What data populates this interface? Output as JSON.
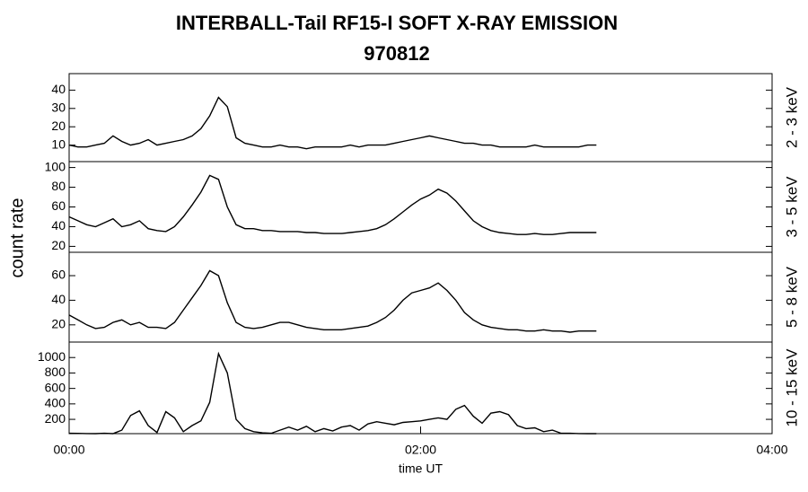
{
  "title": "INTERBALL-Tail RF15-I SOFT X-RAY EMISSION",
  "subtitle": "970812",
  "ylabel": "count rate",
  "chart_data": [
    {
      "type": "line",
      "label": "2 - 3 keV",
      "color": "#000000",
      "x": [
        0,
        3,
        6,
        9,
        12,
        15,
        18,
        21,
        24,
        27,
        30,
        33,
        36,
        39,
        42,
        45,
        48,
        51,
        54,
        57,
        60,
        63,
        66,
        69,
        72,
        75,
        78,
        81,
        84,
        87,
        90,
        93,
        96,
        99,
        102,
        105,
        108,
        111,
        114,
        117,
        120,
        123,
        126,
        129,
        132,
        135,
        138,
        141,
        144,
        147,
        150,
        153,
        156,
        159,
        162,
        165,
        168,
        171,
        174,
        177,
        180
      ],
      "values": [
        10,
        9,
        9,
        10,
        11,
        15,
        12,
        10,
        11,
        13,
        10,
        11,
        12,
        13,
        15,
        19,
        26,
        36,
        31,
        14,
        11,
        10,
        9,
        9,
        10,
        9,
        9,
        8,
        9,
        9,
        9,
        9,
        10,
        9,
        10,
        10,
        10,
        11,
        12,
        13,
        14,
        15,
        14,
        13,
        12,
        11,
        11,
        10,
        10,
        9,
        9,
        9,
        9,
        10,
        9,
        9,
        9,
        9,
        9,
        10,
        10
      ],
      "xlim": [
        0,
        240
      ],
      "ylim": [
        1,
        49
      ],
      "yticks": [
        10,
        20,
        30,
        40
      ]
    },
    {
      "type": "line",
      "label": "3 - 5 keV",
      "color": "#000000",
      "x": [
        0,
        3,
        6,
        9,
        12,
        15,
        18,
        21,
        24,
        27,
        30,
        33,
        36,
        39,
        42,
        45,
        48,
        51,
        54,
        57,
        60,
        63,
        66,
        69,
        72,
        75,
        78,
        81,
        84,
        87,
        90,
        93,
        96,
        99,
        102,
        105,
        108,
        111,
        114,
        117,
        120,
        123,
        126,
        129,
        132,
        135,
        138,
        141,
        144,
        147,
        150,
        153,
        156,
        159,
        162,
        165,
        168,
        171,
        174,
        177,
        180
      ],
      "values": [
        50,
        46,
        42,
        40,
        44,
        48,
        40,
        42,
        46,
        38,
        36,
        35,
        40,
        50,
        62,
        75,
        92,
        88,
        60,
        42,
        38,
        38,
        36,
        36,
        35,
        35,
        35,
        34,
        34,
        33,
        33,
        33,
        34,
        35,
        36,
        38,
        42,
        48,
        55,
        62,
        68,
        72,
        78,
        74,
        66,
        56,
        46,
        40,
        36,
        34,
        33,
        32,
        32,
        33,
        32,
        32,
        33,
        34,
        34,
        34,
        34
      ],
      "xlim": [
        0,
        240
      ],
      "ylim": [
        14,
        106
      ],
      "yticks": [
        20,
        40,
        60,
        80,
        100
      ]
    },
    {
      "type": "line",
      "label": "5 - 8 keV",
      "color": "#000000",
      "x": [
        0,
        3,
        6,
        9,
        12,
        15,
        18,
        21,
        24,
        27,
        30,
        33,
        36,
        39,
        42,
        45,
        48,
        51,
        54,
        57,
        60,
        63,
        66,
        69,
        72,
        75,
        78,
        81,
        84,
        87,
        90,
        93,
        96,
        99,
        102,
        105,
        108,
        111,
        114,
        117,
        120,
        123,
        126,
        129,
        132,
        135,
        138,
        141,
        144,
        147,
        150,
        153,
        156,
        159,
        162,
        165,
        168,
        171,
        174,
        177,
        180
      ],
      "values": [
        28,
        24,
        20,
        17,
        18,
        22,
        24,
        20,
        22,
        18,
        18,
        17,
        22,
        32,
        42,
        52,
        64,
        60,
        38,
        22,
        18,
        17,
        18,
        20,
        22,
        22,
        20,
        18,
        17,
        16,
        16,
        16,
        17,
        18,
        19,
        22,
        26,
        32,
        40,
        46,
        48,
        50,
        54,
        48,
        40,
        30,
        24,
        20,
        18,
        17,
        16,
        16,
        15,
        15,
        16,
        15,
        15,
        14,
        15,
        15,
        15
      ],
      "xlim": [
        0,
        240
      ],
      "ylim": [
        6,
        79
      ],
      "yticks": [
        20,
        40,
        60
      ]
    },
    {
      "type": "line",
      "label": "10 - 15 keV",
      "color": "#000000",
      "x": [
        0,
        3,
        6,
        9,
        12,
        15,
        18,
        21,
        24,
        27,
        30,
        33,
        36,
        39,
        42,
        45,
        48,
        51,
        54,
        57,
        60,
        63,
        66,
        69,
        72,
        75,
        78,
        81,
        84,
        87,
        90,
        93,
        96,
        99,
        102,
        105,
        108,
        111,
        114,
        117,
        120,
        123,
        126,
        129,
        132,
        135,
        138,
        141,
        144,
        147,
        150,
        153,
        156,
        159,
        162,
        165,
        168,
        171,
        174,
        177,
        180
      ],
      "values": [
        20,
        18,
        16,
        15,
        20,
        15,
        60,
        250,
        310,
        120,
        30,
        300,
        220,
        40,
        120,
        180,
        420,
        1050,
        800,
        200,
        80,
        40,
        25,
        20,
        60,
        100,
        60,
        110,
        40,
        80,
        50,
        100,
        120,
        60,
        140,
        170,
        150,
        130,
        160,
        170,
        180,
        200,
        220,
        200,
        330,
        380,
        240,
        150,
        280,
        300,
        260,
        120,
        80,
        90,
        40,
        60,
        20,
        20,
        16,
        15,
        15
      ],
      "xlim": [
        0,
        240
      ],
      "ylim": [
        15,
        1200
      ],
      "yticks": [
        200,
        400,
        600,
        800,
        1000
      ],
      "xticks": [
        {
          "value": 0,
          "label": "00:00"
        },
        {
          "value": 120,
          "label": "02:00"
        },
        {
          "value": 240,
          "label": "04:00"
        }
      ],
      "xlabel": "time UT"
    }
  ]
}
